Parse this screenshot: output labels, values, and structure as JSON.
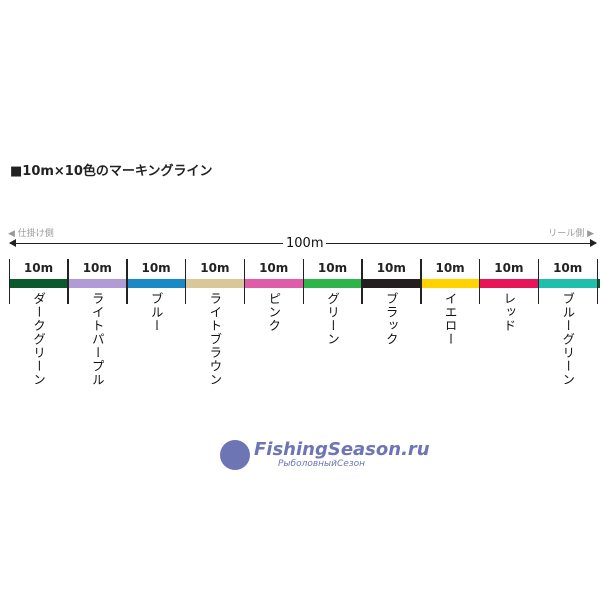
{
  "title": "■10m×10色のマーキングライン",
  "left_label": "◀ 仕掛け側",
  "right_label": "リール側 ▶",
  "total_length": "100m",
  "segments": [
    {
      "length": "10m",
      "name": "ダークグリーン",
      "color": "#0b5a2e"
    },
    {
      "length": "10m",
      "name": "ライトパープル",
      "color": "#b19bd6"
    },
    {
      "length": "10m",
      "name": "ブルー",
      "color": "#1a8ac7"
    },
    {
      "length": "10m",
      "name": "ライトブラウン",
      "color": "#d8c79a"
    },
    {
      "length": "10m",
      "name": "ピンク",
      "color": "#df5ca8"
    },
    {
      "length": "10m",
      "name": "グリーン",
      "color": "#2db54b"
    },
    {
      "length": "10m",
      "name": "ブラック",
      "color": "#231f20"
    },
    {
      "length": "10m",
      "name": "イエロー",
      "color": "#ffd200"
    },
    {
      "length": "10m",
      "name": "レッド",
      "color": "#e8145a"
    },
    {
      "length": "10m",
      "name": "ブルーグリーン",
      "color": "#1fbfae"
    }
  ],
  "watermark": {
    "line1": "FishingSeason.ru",
    "line2": "РыболовныйСезон"
  }
}
